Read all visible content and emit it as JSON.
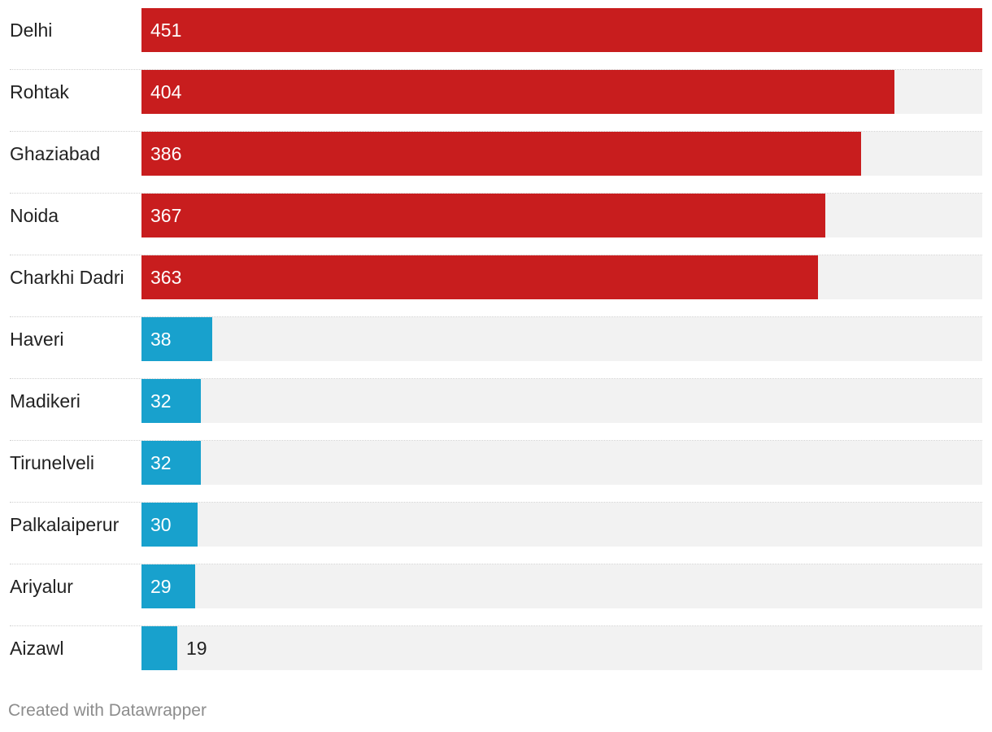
{
  "chart_data": {
    "type": "bar",
    "orientation": "horizontal",
    "categories": [
      "Delhi",
      "Rohtak",
      "Ghaziabad",
      "Noida",
      "Charkhi Dadri",
      "Haveri",
      "Madikeri",
      "Tirunelveli",
      "Palkalaiperur",
      "Ariyalur",
      "Aizawl"
    ],
    "values": [
      451,
      404,
      386,
      367,
      363,
      38,
      32,
      32,
      30,
      29,
      19
    ],
    "bar_colors": [
      "#c81d1e",
      "#c81d1e",
      "#c81d1e",
      "#c81d1e",
      "#c81d1e",
      "#18a1cd",
      "#18a1cd",
      "#18a1cd",
      "#18a1cd",
      "#18a1cd",
      "#18a1cd"
    ],
    "xlim": [
      0,
      451
    ],
    "title": "",
    "xlabel": "",
    "ylabel": "",
    "grid": false
  },
  "colors": {
    "track": "#f2f2f2",
    "label": "#222222",
    "footer": "#8c8c8c"
  },
  "footer": {
    "credit": "Created with Datawrapper"
  }
}
